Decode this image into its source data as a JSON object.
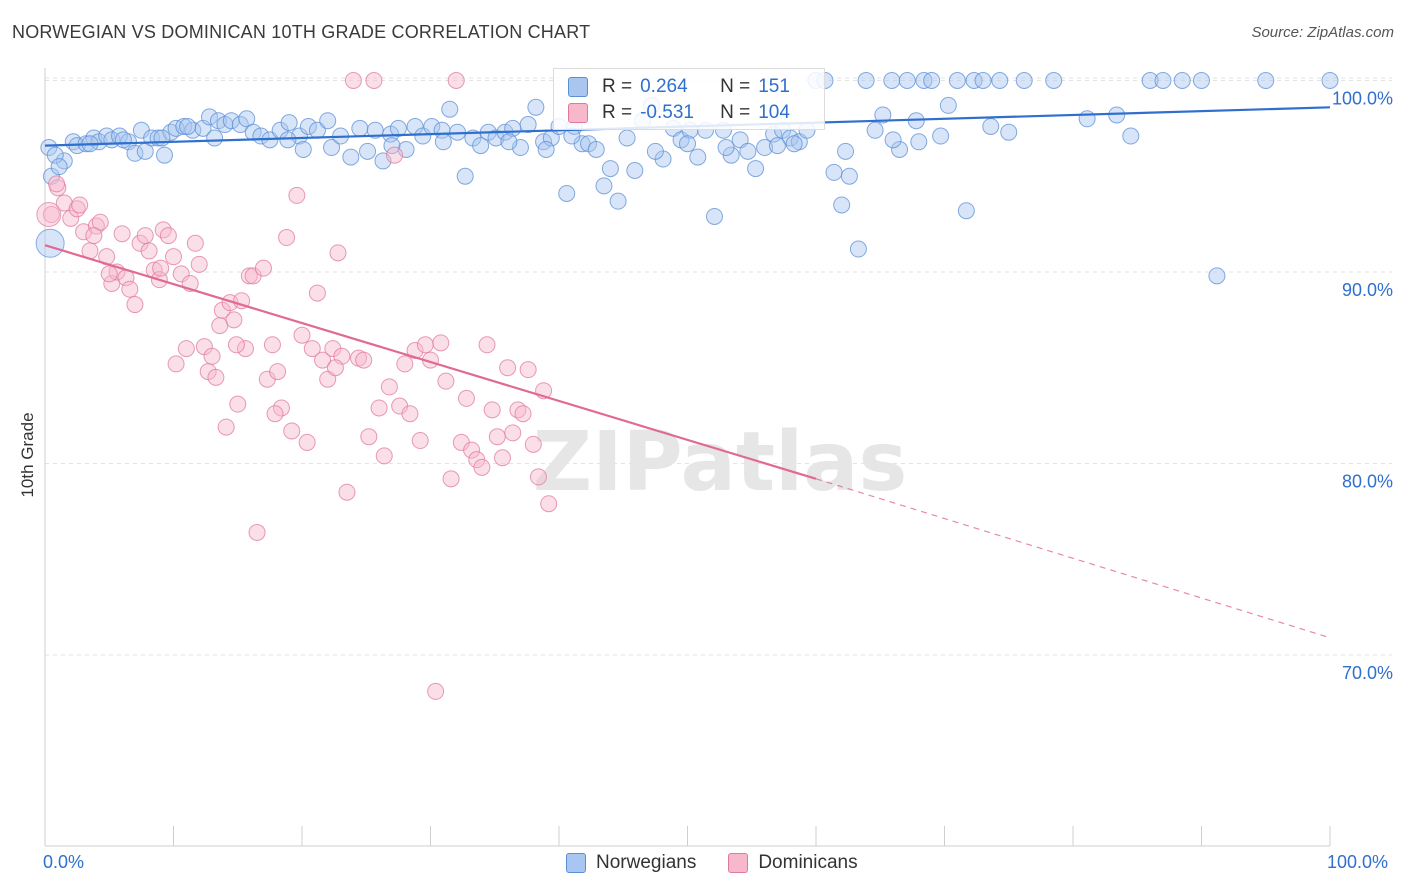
{
  "title": "NORWEGIAN VS DOMINICAN 10TH GRADE CORRELATION CHART",
  "source": "Source: ZipAtlas.com",
  "watermark": "ZIPatlas",
  "legend": {
    "rows": [
      {
        "r_label": "R =",
        "r_value": "0.264",
        "n_label": "N =",
        "n_value": "151",
        "color": "#a8c6ef",
        "border": "#5b8fd6"
      },
      {
        "r_label": "R =",
        "r_value": "-0.531",
        "n_label": "N =",
        "n_value": "104",
        "color": "#f7b8cb",
        "border": "#e07a9c"
      }
    ]
  },
  "bottom_legend": [
    {
      "label": "Norwegians",
      "color": "#a8c6ef",
      "border": "#5b8fd6"
    },
    {
      "label": "Dominicans",
      "color": "#f7b8cb",
      "border": "#e07a9c"
    }
  ],
  "chart_data": {
    "type": "scatter",
    "title": "NORWEGIAN VS DOMINICAN 10TH GRADE CORRELATION CHART",
    "xlabel": "",
    "ylabel": "10th Grade",
    "xlim": [
      0,
      100
    ],
    "ylim": [
      60,
      104
    ],
    "x_tick_labels": [
      "0.0%",
      "100.0%"
    ],
    "y_ticks": [
      70,
      80,
      90,
      100
    ],
    "y_tick_labels": [
      "70.0%",
      "80.0%",
      "90.0%",
      "100.0%"
    ],
    "grid": true,
    "series": [
      {
        "name": "Norwegians",
        "color": "#5b8fd6",
        "fill": "#a8c6ef",
        "trend": {
          "x0": 0,
          "y0": 96.6,
          "x1": 100,
          "y1": 98.6,
          "dashed_from": 100
        },
        "points": [
          [
            0.5,
            95.0
          ],
          [
            1.5,
            95.8
          ],
          [
            2.2,
            96.8
          ],
          [
            2.5,
            96.6
          ],
          [
            3.2,
            96.7
          ],
          [
            3.8,
            97.0
          ],
          [
            4.2,
            96.8
          ],
          [
            4.8,
            97.1
          ],
          [
            5.2,
            96.9
          ],
          [
            5.8,
            97.1
          ],
          [
            6.5,
            96.8
          ],
          [
            7,
            96.2
          ],
          [
            7.5,
            97.4
          ],
          [
            7.8,
            96.3
          ],
          [
            8.3,
            97.0
          ],
          [
            8.8,
            97.0
          ],
          [
            9.3,
            96.1
          ],
          [
            9.8,
            97.3
          ],
          [
            10.2,
            97.5
          ],
          [
            10.8,
            97.6
          ],
          [
            11.5,
            97.4
          ],
          [
            12.3,
            97.5
          ],
          [
            12.8,
            98.1
          ],
          [
            13.5,
            97.9
          ],
          [
            14,
            97.7
          ],
          [
            14.5,
            97.9
          ],
          [
            15.2,
            97.7
          ],
          [
            15.7,
            98.0
          ],
          [
            16.2,
            97.3
          ],
          [
            16.8,
            97.1
          ],
          [
            17.5,
            96.9
          ],
          [
            18.3,
            97.4
          ],
          [
            19,
            97.8
          ],
          [
            19.8,
            97.1
          ],
          [
            20.5,
            97.6
          ],
          [
            21.2,
            97.4
          ],
          [
            22,
            97.9
          ],
          [
            22.3,
            96.5
          ],
          [
            23,
            97.1
          ],
          [
            23.8,
            96.0
          ],
          [
            24.5,
            97.5
          ],
          [
            25.1,
            96.3
          ],
          [
            25.7,
            97.4
          ],
          [
            26.3,
            95.8
          ],
          [
            26.9,
            97.2
          ],
          [
            27.5,
            97.5
          ],
          [
            28.1,
            96.4
          ],
          [
            28.8,
            97.6
          ],
          [
            29.4,
            97.1
          ],
          [
            30.1,
            97.6
          ],
          [
            30.9,
            97.4
          ],
          [
            31.5,
            98.5
          ],
          [
            32.1,
            97.3
          ],
          [
            32.7,
            95.0
          ],
          [
            33.3,
            97.0
          ],
          [
            33.9,
            96.6
          ],
          [
            34.5,
            97.3
          ],
          [
            35.1,
            97.0
          ],
          [
            35.8,
            97.3
          ],
          [
            36.4,
            97.5
          ],
          [
            37,
            96.5
          ],
          [
            37.6,
            97.7
          ],
          [
            38.2,
            98.6
          ],
          [
            38.8,
            96.8
          ],
          [
            39.4,
            97.0
          ],
          [
            40,
            97.6
          ],
          [
            40.6,
            94.1
          ],
          [
            41.2,
            97.6
          ],
          [
            41.8,
            96.7
          ],
          [
            42.3,
            96.7
          ],
          [
            42.9,
            96.4
          ],
          [
            43.5,
            94.5
          ],
          [
            44,
            95.4
          ],
          [
            44.6,
            93.7
          ],
          [
            45.3,
            97.0
          ],
          [
            45.9,
            95.3
          ],
          [
            46.5,
            97.9
          ],
          [
            47.2,
            98.7
          ],
          [
            48.1,
            95.9
          ],
          [
            48.9,
            97.5
          ],
          [
            49.5,
            96.9
          ],
          [
            50.2,
            97.4
          ],
          [
            50.8,
            96.0
          ],
          [
            51.4,
            97.4
          ],
          [
            52.1,
            92.9
          ],
          [
            52.8,
            97.4
          ],
          [
            53.4,
            96.1
          ],
          [
            54.1,
            96.9
          ],
          [
            54.7,
            96.3
          ],
          [
            55.3,
            95.4
          ],
          [
            56,
            96.5
          ],
          [
            56.7,
            97.2
          ],
          [
            57.4,
            97.4
          ],
          [
            58.0,
            97.0
          ],
          [
            58.7,
            96.8
          ],
          [
            59.3,
            97.4
          ],
          [
            60.0,
            100.0
          ],
          [
            60.7,
            100.0
          ],
          [
            61.4,
            95.2
          ],
          [
            62.0,
            93.5
          ],
          [
            62.6,
            95.0
          ],
          [
            63.3,
            91.2
          ],
          [
            63.9,
            100.0
          ],
          [
            64.6,
            97.4
          ],
          [
            65.2,
            98.2
          ],
          [
            65.9,
            100.0
          ],
          [
            66.5,
            96.4
          ],
          [
            67.1,
            100.0
          ],
          [
            67.8,
            97.9
          ],
          [
            68.4,
            100.0
          ],
          [
            69.0,
            100.0
          ],
          [
            69.7,
            97.1
          ],
          [
            70.3,
            98.7
          ],
          [
            71.0,
            100.0
          ],
          [
            71.7,
            93.2
          ],
          [
            72.3,
            100.0
          ],
          [
            73.0,
            100.0
          ],
          [
            73.6,
            97.6
          ],
          [
            74.3,
            100.0
          ],
          [
            76.2,
            100.0
          ],
          [
            78.5,
            100.0
          ],
          [
            81.1,
            98.0
          ],
          [
            83.4,
            98.2
          ],
          [
            84.5,
            97.1
          ],
          [
            86.0,
            100.0
          ],
          [
            87.0,
            100.0
          ],
          [
            88.5,
            100.0
          ],
          [
            90.0,
            100.0
          ],
          [
            91.2,
            89.8
          ],
          [
            95.0,
            100.0
          ],
          [
            100.0,
            100.0
          ],
          [
            0.3,
            96.5
          ],
          [
            0.8,
            96.1
          ],
          [
            1.1,
            95.5
          ],
          [
            3.5,
            96.7
          ],
          [
            6.1,
            96.9
          ],
          [
            9.1,
            97.0
          ],
          [
            11.1,
            97.6
          ],
          [
            13.2,
            97.0
          ],
          [
            18.9,
            96.9
          ],
          [
            20.1,
            96.4
          ],
          [
            27.0,
            96.6
          ],
          [
            31.0,
            96.8
          ],
          [
            36.1,
            96.8
          ],
          [
            39.0,
            96.4
          ],
          [
            41.0,
            97.1
          ],
          [
            47.5,
            96.3
          ],
          [
            50.0,
            96.7
          ],
          [
            53.0,
            96.5
          ],
          [
            57.0,
            96.6
          ],
          [
            58.3,
            96.7
          ],
          [
            62.3,
            96.3
          ],
          [
            66.0,
            96.9
          ],
          [
            68.0,
            96.8
          ],
          [
            75.0,
            97.3
          ]
        ]
      },
      {
        "name": "Dominicans",
        "color": "#e07a9c",
        "fill": "#f7b8cb",
        "trend": {
          "x0": 0,
          "y0": 91.4,
          "x1": 60,
          "y1": 79.2,
          "dashed_to": 100,
          "dashed_y": 70.9
        },
        "points": [
          [
            0.5,
            93.0
          ],
          [
            1.0,
            94.4
          ],
          [
            1.5,
            93.6
          ],
          [
            2.0,
            92.8
          ],
          [
            2.5,
            93.3
          ],
          [
            3.0,
            92.1
          ],
          [
            3.5,
            91.1
          ],
          [
            4.0,
            92.4
          ],
          [
            4.3,
            92.6
          ],
          [
            4.8,
            90.8
          ],
          [
            5.2,
            89.4
          ],
          [
            5.6,
            90.0
          ],
          [
            6.0,
            92.0
          ],
          [
            6.3,
            89.7
          ],
          [
            6.6,
            89.1
          ],
          [
            7.0,
            88.3
          ],
          [
            7.4,
            91.5
          ],
          [
            7.8,
            91.9
          ],
          [
            8.1,
            91.1
          ],
          [
            8.5,
            90.1
          ],
          [
            8.9,
            89.6
          ],
          [
            9.2,
            92.2
          ],
          [
            9.6,
            91.9
          ],
          [
            10.0,
            90.8
          ],
          [
            10.2,
            85.2
          ],
          [
            10.6,
            89.9
          ],
          [
            11.0,
            86.0
          ],
          [
            11.3,
            89.4
          ],
          [
            11.7,
            91.5
          ],
          [
            12.0,
            90.4
          ],
          [
            12.4,
            86.1
          ],
          [
            12.7,
            84.8
          ],
          [
            13.0,
            85.6
          ],
          [
            13.3,
            84.5
          ],
          [
            13.6,
            87.2
          ],
          [
            13.8,
            88.0
          ],
          [
            14.1,
            81.9
          ],
          [
            14.4,
            88.4
          ],
          [
            14.7,
            87.5
          ],
          [
            15.0,
            83.1
          ],
          [
            15.3,
            88.5
          ],
          [
            15.6,
            86.0
          ],
          [
            15.9,
            89.8
          ],
          [
            16.2,
            89.8
          ],
          [
            16.5,
            76.4
          ],
          [
            17.0,
            90.2
          ],
          [
            17.3,
            84.4
          ],
          [
            17.7,
            86.2
          ],
          [
            18.1,
            84.8
          ],
          [
            18.4,
            82.9
          ],
          [
            18.8,
            91.8
          ],
          [
            19.2,
            81.7
          ],
          [
            19.6,
            94.0
          ],
          [
            20.0,
            86.7
          ],
          [
            20.4,
            81.1
          ],
          [
            20.8,
            86.0
          ],
          [
            21.2,
            88.9
          ],
          [
            21.6,
            85.4
          ],
          [
            22.0,
            84.4
          ],
          [
            22.4,
            86.0
          ],
          [
            22.8,
            91.0
          ],
          [
            23.1,
            85.6
          ],
          [
            23.5,
            78.5
          ],
          [
            24.0,
            100.0
          ],
          [
            24.4,
            85.5
          ],
          [
            24.8,
            85.4
          ],
          [
            25.2,
            81.4
          ],
          [
            25.6,
            100.0
          ],
          [
            26.0,
            82.9
          ],
          [
            26.4,
            80.4
          ],
          [
            26.8,
            84.0
          ],
          [
            27.2,
            96.1
          ],
          [
            27.6,
            83.0
          ],
          [
            28.0,
            85.2
          ],
          [
            28.4,
            82.6
          ],
          [
            28.8,
            85.9
          ],
          [
            29.2,
            81.2
          ],
          [
            29.6,
            86.2
          ],
          [
            30.0,
            85.4
          ],
          [
            30.4,
            68.1
          ],
          [
            30.8,
            86.3
          ],
          [
            31.2,
            84.3
          ],
          [
            31.6,
            79.2
          ],
          [
            32.0,
            100.0
          ],
          [
            32.4,
            81.1
          ],
          [
            32.8,
            83.4
          ],
          [
            33.2,
            80.7
          ],
          [
            33.6,
            80.2
          ],
          [
            34.0,
            79.8
          ],
          [
            34.4,
            86.2
          ],
          [
            34.8,
            82.8
          ],
          [
            35.2,
            81.4
          ],
          [
            35.6,
            80.3
          ],
          [
            36.0,
            85.0
          ],
          [
            36.4,
            81.6
          ],
          [
            36.8,
            82.8
          ],
          [
            37.2,
            82.6
          ],
          [
            37.6,
            84.9
          ],
          [
            38.0,
            81.0
          ],
          [
            38.4,
            79.3
          ],
          [
            38.8,
            83.8
          ],
          [
            39.2,
            77.9
          ],
          [
            0.9,
            94.6
          ],
          [
            2.7,
            93.5
          ],
          [
            3.8,
            91.9
          ],
          [
            5.0,
            89.9
          ],
          [
            9.0,
            90.2
          ],
          [
            14.9,
            86.2
          ],
          [
            17.9,
            82.6
          ],
          [
            22.6,
            85.0
          ]
        ]
      }
    ]
  }
}
